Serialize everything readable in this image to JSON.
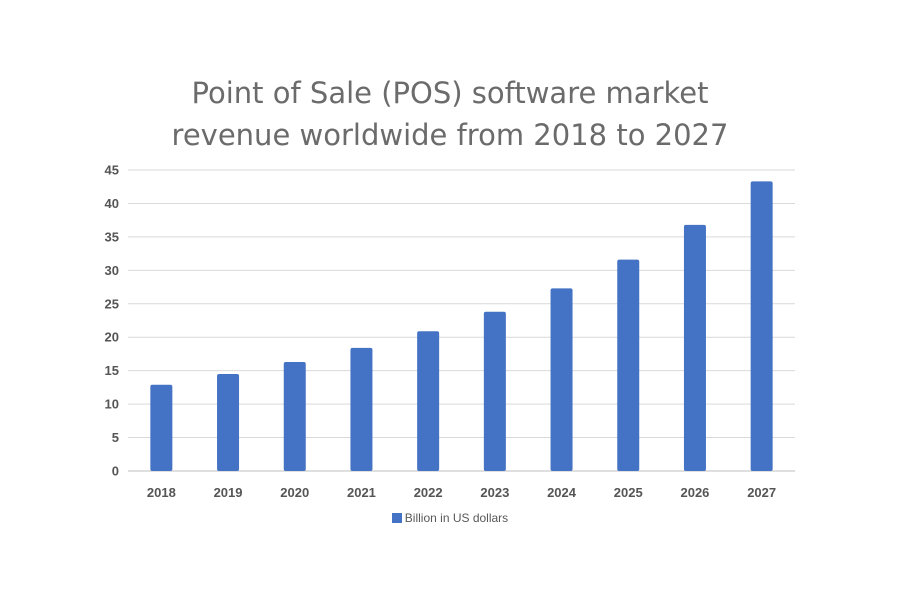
{
  "chart_data": {
    "type": "bar",
    "title_lines": [
      "Point of Sale (POS) software market",
      "revenue worldwide from 2018 to 2027"
    ],
    "categories": [
      "2018",
      "2019",
      "2020",
      "2021",
      "2022",
      "2023",
      "2024",
      "2025",
      "2026",
      "2027"
    ],
    "series": [
      {
        "name": "Billion in US dollars",
        "values": [
          12.9,
          14.5,
          16.3,
          18.4,
          20.9,
          23.8,
          27.3,
          31.6,
          36.8,
          43.3
        ]
      }
    ],
    "ylim": [
      0,
      45
    ],
    "yticks": [
      "0",
      "5",
      "10",
      "15",
      "20",
      "25",
      "30",
      "35",
      "40",
      "45"
    ],
    "grid": true,
    "legend_position": "bottom",
    "colors": {
      "bar": "#4472c4",
      "grid": "#d9d9d9",
      "axis": "#bfbfbf"
    }
  }
}
